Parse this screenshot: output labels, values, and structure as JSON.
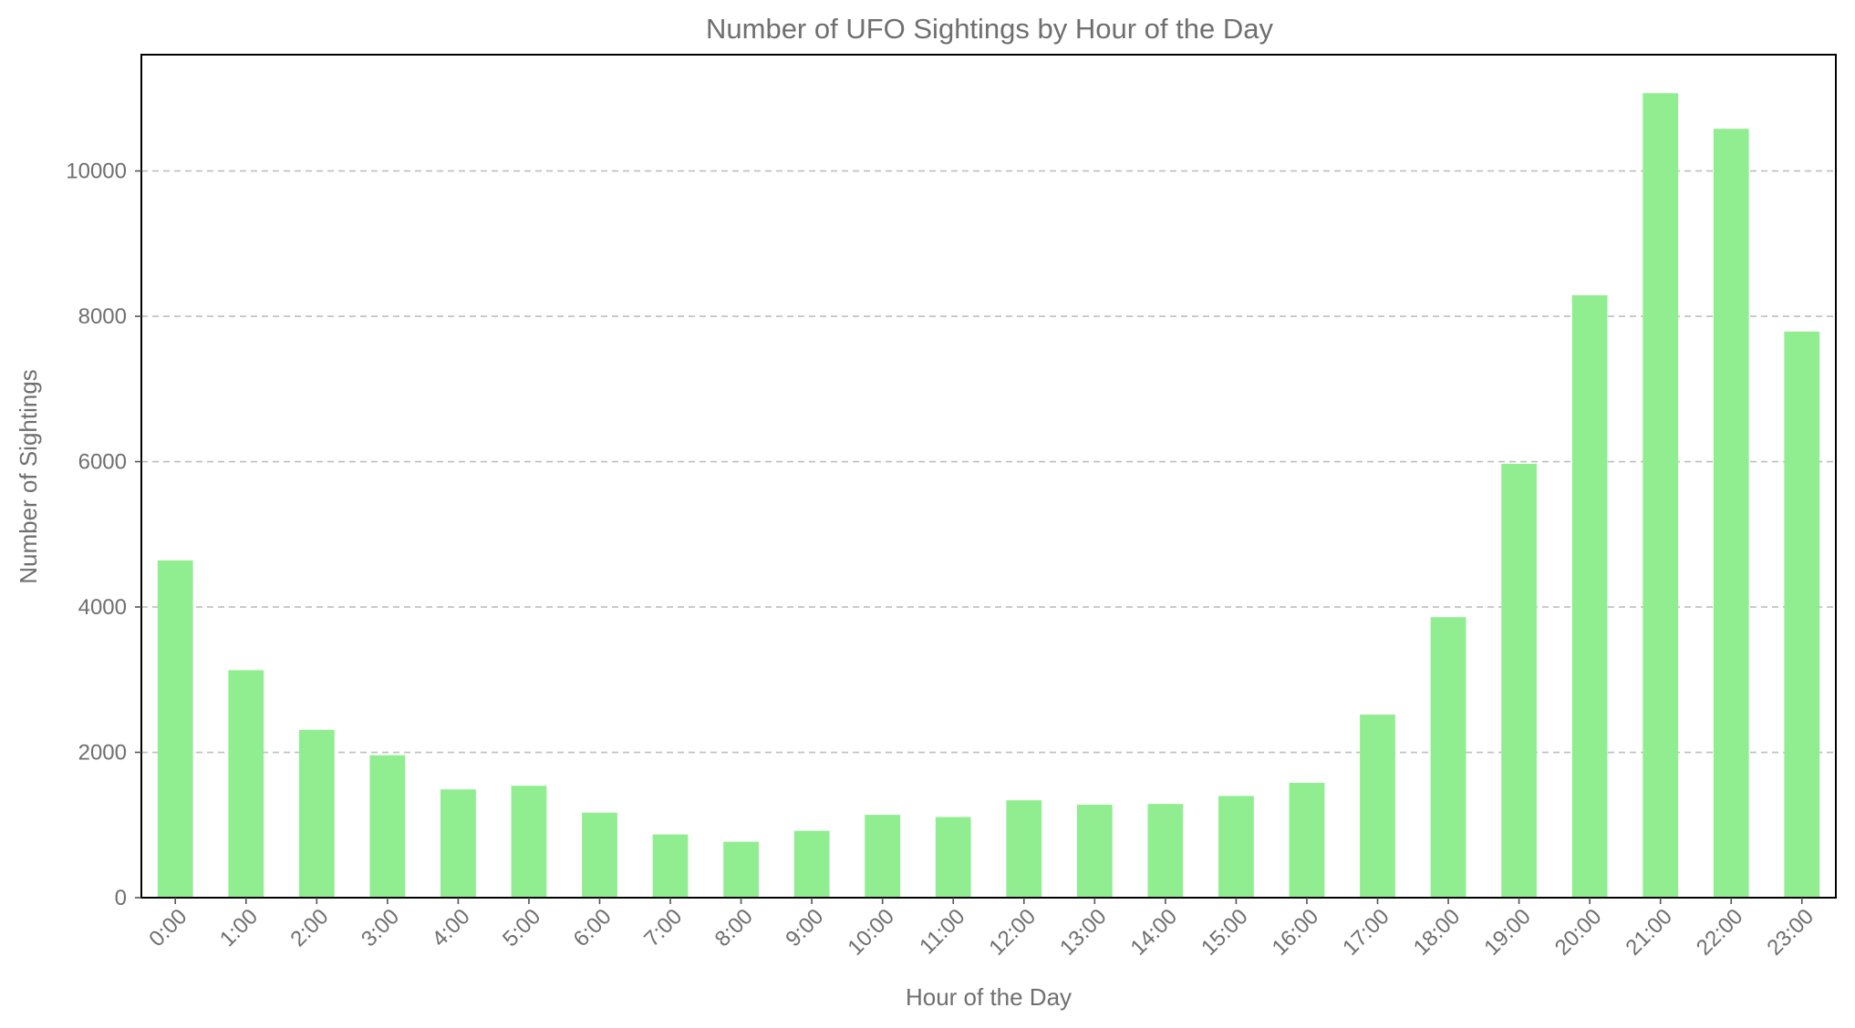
{
  "chart_data": {
    "type": "bar",
    "title": "Number of UFO Sightings by Hour of the Day",
    "xlabel": "Hour of the Day",
    "ylabel": "Number of Sightings",
    "categories": [
      "0:00",
      "1:00",
      "2:00",
      "3:00",
      "4:00",
      "5:00",
      "6:00",
      "7:00",
      "8:00",
      "9:00",
      "10:00",
      "11:00",
      "12:00",
      "13:00",
      "14:00",
      "15:00",
      "16:00",
      "17:00",
      "18:00",
      "19:00",
      "20:00",
      "21:00",
      "22:00",
      "23:00"
    ],
    "values": [
      4640,
      3130,
      2310,
      1960,
      1490,
      1540,
      1170,
      870,
      770,
      920,
      1140,
      1110,
      1340,
      1280,
      1290,
      1400,
      1580,
      2520,
      3860,
      5970,
      8290,
      11070,
      10580,
      7790
    ],
    "yticks": [
      0,
      2000,
      4000,
      6000,
      8000,
      10000
    ],
    "ylim": [
      0,
      11600
    ],
    "grid": "y-dashed",
    "bar_color": "#90ee90"
  }
}
